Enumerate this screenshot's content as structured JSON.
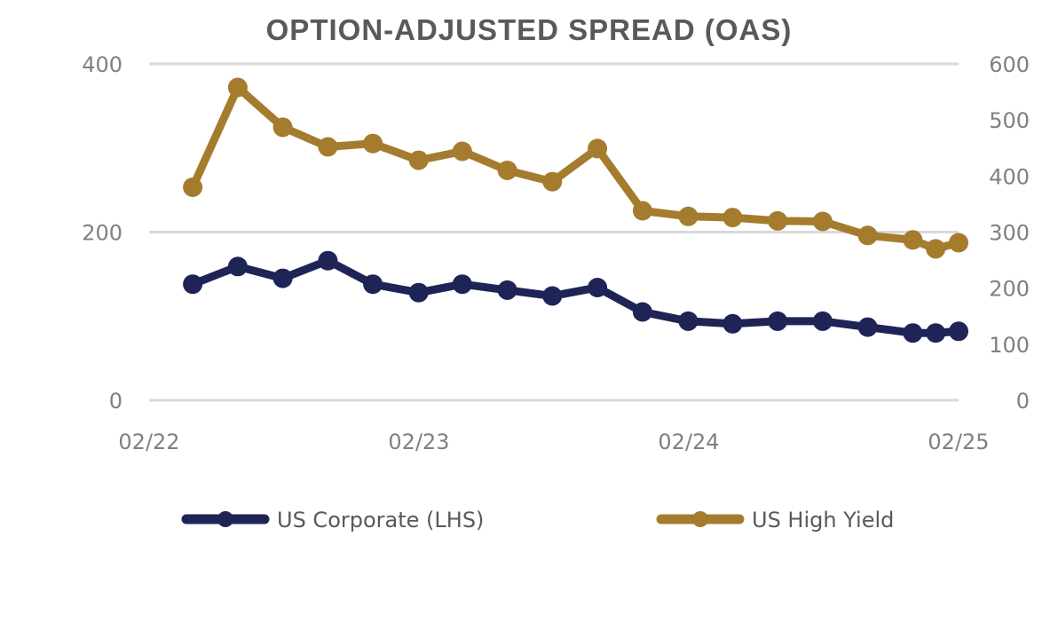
{
  "chart_data": {
    "type": "line",
    "title": "OPTION-ADJUSTED SPREAD (OAS)",
    "x_tick_labels": [
      "02/22",
      "02/23",
      "02/24",
      "02/25"
    ],
    "x": [
      "2022-04",
      "2022-06",
      "2022-08",
      "2022-10",
      "2022-12",
      "2023-02",
      "2023-04",
      "2023-06",
      "2023-08",
      "2023-10",
      "2023-12",
      "2024-02",
      "2024-04",
      "2024-06",
      "2024-08",
      "2024-10",
      "2024-12",
      "2025-01",
      "2025-02"
    ],
    "x_dates": [
      "2022-03-31",
      "2022-05-31",
      "2022-07-31",
      "2022-09-30",
      "2022-11-30",
      "2023-01-31",
      "2023-03-31",
      "2023-05-31",
      "2023-07-31",
      "2023-09-30",
      "2023-11-30",
      "2024-01-31",
      "2024-03-31",
      "2024-05-31",
      "2024-07-31",
      "2024-09-30",
      "2024-11-30",
      "2024-12-31",
      "2025-01-31"
    ],
    "series": [
      {
        "name": "US Corporate (LHS)",
        "axis": "left",
        "color": "#1f2456",
        "values": [
          138,
          159,
          145,
          166,
          138,
          128,
          138,
          131,
          124,
          134,
          105,
          94,
          91,
          94,
          94,
          87,
          80,
          80,
          82
        ]
      },
      {
        "name": "US High Yield",
        "axis": "right",
        "color": "#a57c2e",
        "values": [
          380,
          558,
          487,
          452,
          458,
          428,
          444,
          410,
          390,
          449,
          338,
          328,
          326,
          320,
          319,
          294,
          286,
          270,
          281
        ]
      }
    ],
    "y_left": {
      "ylim": [
        0,
        400
      ],
      "ticks": [
        0,
        200,
        400
      ]
    },
    "y_right": {
      "ylim": [
        0,
        600
      ],
      "ticks": [
        0,
        100,
        200,
        300,
        400,
        500,
        600
      ]
    },
    "x_range": [
      "2022-01-31",
      "2025-01-31"
    ],
    "grid": true,
    "legend_position": "bottom"
  }
}
